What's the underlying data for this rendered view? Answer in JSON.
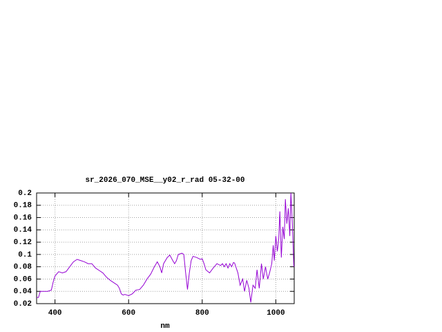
{
  "chart_data": {
    "type": "line",
    "title": "sr_2026_070_MSE__y02_r_rad 05-32-00",
    "x_label": "nm",
    "color": "#9400d3",
    "grid": true,
    "xlim": [
      350,
      1050
    ],
    "ylim": [
      0.02,
      0.2
    ],
    "xticks": [
      400,
      600,
      800,
      1000
    ],
    "yticks": [
      0.02,
      0.04,
      0.06,
      0.08,
      0.1,
      0.12,
      0.14,
      0.16,
      0.18,
      0.2
    ],
    "x": [
      350,
      355,
      360,
      370,
      380,
      390,
      395,
      400,
      410,
      420,
      430,
      440,
      450,
      460,
      470,
      480,
      490,
      500,
      510,
      520,
      530,
      540,
      550,
      560,
      570,
      575,
      580,
      585,
      590,
      595,
      600,
      610,
      620,
      630,
      640,
      650,
      660,
      670,
      678,
      685,
      690,
      695,
      705,
      712,
      720,
      725,
      730,
      735,
      745,
      750,
      755,
      760,
      765,
      770,
      775,
      785,
      795,
      800,
      805,
      810,
      820,
      830,
      840,
      850,
      855,
      860,
      865,
      870,
      875,
      880,
      885,
      888,
      897,
      903,
      910,
      915,
      921,
      927,
      932,
      938,
      944,
      949,
      955,
      961,
      966,
      972,
      978,
      983,
      989,
      993,
      996,
      1000,
      1004,
      1008,
      1011,
      1015,
      1019,
      1023,
      1026,
      1030,
      1034,
      1038,
      1041,
      1045,
      1049
    ],
    "values": [
      0.03,
      0.03,
      0.04,
      0.04,
      0.04,
      0.042,
      0.055,
      0.065,
      0.072,
      0.07,
      0.072,
      0.08,
      0.088,
      0.092,
      0.09,
      0.088,
      0.085,
      0.085,
      0.078,
      0.074,
      0.07,
      0.063,
      0.058,
      0.054,
      0.05,
      0.045,
      0.036,
      0.034,
      0.035,
      0.034,
      0.033,
      0.036,
      0.042,
      0.043,
      0.05,
      0.06,
      0.068,
      0.08,
      0.088,
      0.08,
      0.07,
      0.085,
      0.095,
      0.099,
      0.09,
      0.085,
      0.09,
      0.1,
      0.102,
      0.1,
      0.07,
      0.043,
      0.07,
      0.09,
      0.097,
      0.095,
      0.092,
      0.093,
      0.085,
      0.075,
      0.07,
      0.078,
      0.085,
      0.082,
      0.085,
      0.08,
      0.085,
      0.078,
      0.085,
      0.08,
      0.087,
      0.086,
      0.07,
      0.05,
      0.06,
      0.04,
      0.058,
      0.045,
      0.022,
      0.05,
      0.045,
      0.075,
      0.045,
      0.085,
      0.06,
      0.08,
      0.06,
      0.07,
      0.085,
      0.115,
      0.09,
      0.13,
      0.105,
      0.125,
      0.17,
      0.095,
      0.145,
      0.125,
      0.19,
      0.15,
      0.175,
      0.13,
      0.2,
      0.15,
      0.08
    ]
  }
}
